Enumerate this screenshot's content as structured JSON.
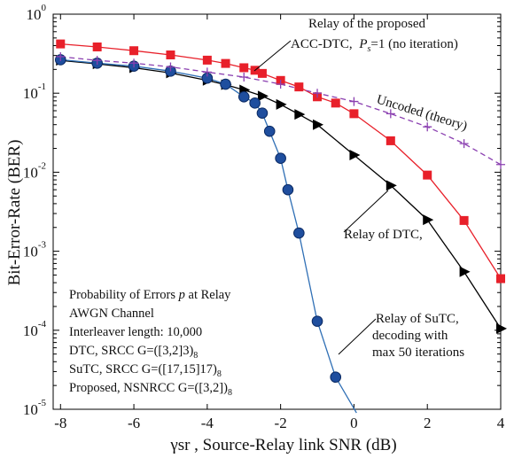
{
  "chart_data": {
    "type": "line",
    "title": "",
    "xlabel": "γsr , Source-Relay link SNR (dB)",
    "ylabel": "Bit-Error-Rate (BER)",
    "xlim": [
      -8.2,
      4
    ],
    "ylim_exp": [
      -5,
      0
    ],
    "y_scale": "log",
    "x_ticks": [
      -8,
      -6,
      -4,
      -2,
      0,
      2,
      4
    ],
    "y_ticks": [
      {
        "base": "10",
        "exp": "0"
      },
      {
        "base": "10",
        "exp": "-1"
      },
      {
        "base": "10",
        "exp": "-2"
      },
      {
        "base": "10",
        "exp": "-3"
      },
      {
        "base": "10",
        "exp": "-4"
      },
      {
        "base": "10",
        "exp": "-5"
      }
    ],
    "series": [
      {
        "key": "proposed",
        "color": "#e8202a",
        "marker": "square",
        "points": [
          [
            -8,
            0.42
          ],
          [
            -7,
            0.385
          ],
          [
            -6,
            0.345
          ],
          [
            -5,
            0.305
          ],
          [
            -4,
            0.262
          ],
          [
            -3.5,
            0.238
          ],
          [
            -3,
            0.21
          ],
          [
            -2.7,
            0.195
          ],
          [
            -2.5,
            0.178
          ],
          [
            -2,
            0.145
          ],
          [
            -1.5,
            0.12
          ],
          [
            -1,
            0.09
          ],
          [
            -0.5,
            0.075
          ],
          [
            0,
            0.055
          ],
          [
            1,
            0.025
          ],
          [
            2,
            0.0092
          ],
          [
            3,
            0.00245
          ],
          [
            4,
            0.00045
          ]
        ]
      },
      {
        "key": "dtc",
        "color": "#000000",
        "marker": "triangle",
        "points": [
          [
            -8,
            0.26
          ],
          [
            -7,
            0.235
          ],
          [
            -6,
            0.21
          ],
          [
            -5,
            0.18
          ],
          [
            -4,
            0.145
          ],
          [
            -3.5,
            0.128
          ],
          [
            -3,
            0.11
          ],
          [
            -2.5,
            0.092
          ],
          [
            -2,
            0.072
          ],
          [
            -1.5,
            0.054
          ],
          [
            -1,
            0.04
          ],
          [
            0,
            0.0165
          ],
          [
            1,
            0.0068
          ],
          [
            2,
            0.0025
          ],
          [
            3,
            0.00055
          ],
          [
            4,
            0.000105
          ]
        ]
      },
      {
        "key": "sutc",
        "color": "#2f6fb5",
        "marker": "circle",
        "points": [
          [
            -8,
            0.265
          ],
          [
            -7,
            0.24
          ],
          [
            -6,
            0.22
          ],
          [
            -5,
            0.19
          ],
          [
            -4,
            0.155
          ],
          [
            -3.5,
            0.13
          ],
          [
            -3,
            0.09
          ],
          [
            -2.7,
            0.075
          ],
          [
            -2.5,
            0.056
          ],
          [
            -2.3,
            0.033
          ],
          [
            -2,
            0.015
          ],
          [
            -1.8,
            0.006
          ],
          [
            -1.5,
            0.0017
          ],
          [
            -1,
            0.00013
          ],
          [
            -0.5,
            2.55e-05
          ]
        ],
        "line_end": [
          0.07,
          9e-06
        ]
      },
      {
        "key": "uncoded",
        "color": "#8a3fb0",
        "marker": "plus",
        "dashed": true,
        "points": [
          [
            -8,
            0.29
          ],
          [
            -7,
            0.26
          ],
          [
            -6,
            0.24
          ],
          [
            -5,
            0.215
          ],
          [
            -4,
            0.185
          ],
          [
            -3,
            0.16
          ],
          [
            -2,
            0.13
          ],
          [
            -1,
            0.1
          ],
          [
            0,
            0.0785
          ],
          [
            1,
            0.055
          ],
          [
            2,
            0.0375
          ],
          [
            3,
            0.023
          ],
          [
            4,
            0.0125
          ]
        ]
      }
    ],
    "annotations": {
      "proposed_line1": "Relay of the proposed",
      "proposed_line2": "ACC-DTC,",
      "proposed_ps": "P",
      "proposed_ps_sub": "s",
      "proposed_line2_rest": "=1 (no iteration)",
      "uncoded": "Uncoded (theory)",
      "dtc": "Relay of DTC,",
      "sutc_line1": "Relay of SuTC,",
      "sutc_line2": "decoding  with",
      "sutc_line3": "max 50 iterations"
    },
    "info_box": {
      "line1_pre": "Probability of Errors",
      "line1_p": "p",
      "line1_post": "at Relay",
      "line2": "AWGN Channel",
      "line3": "Interleaver length: 10,000",
      "line4": "DTC, SRCC G=([3,2]3)",
      "line5": "SuTC, SRCC G=([17,15]17)",
      "line6": "Proposed, NSNRCC G=([3,2])",
      "sub8": "8"
    }
  }
}
